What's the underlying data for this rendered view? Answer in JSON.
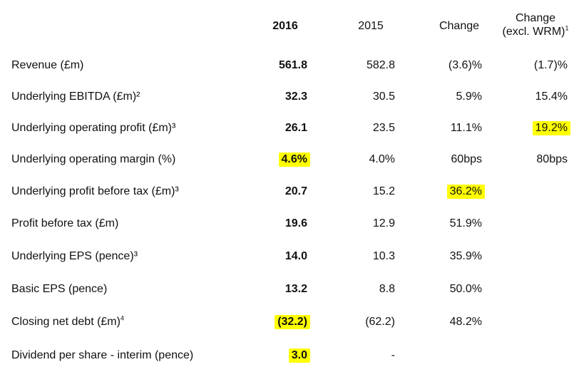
{
  "header": {
    "col_2016": "2016",
    "col_2015": "2015",
    "col_change": "Change",
    "col_change_excl_line1": "Change",
    "col_change_excl_line2": "(excl. WRM)",
    "col_change_excl_sup": "1"
  },
  "highlight_color": "#ffff00",
  "rows": [
    {
      "label": "Revenue (£m)",
      "sup": "",
      "v2016": "561.8",
      "v2015": "582.8",
      "change": "(3.6)%",
      "change_excl": "(1.7)%"
    },
    {
      "label": "Underlying EBITDA (£m)²",
      "sup": "",
      "v2016": "32.3",
      "v2015": "30.5",
      "change": "5.9%",
      "change_excl": "15.4%"
    },
    {
      "label": "Underlying operating profit (£m)³",
      "sup": "",
      "v2016": "26.1",
      "v2015": "23.5",
      "change": "11.1%",
      "change_excl": "19.2%"
    },
    {
      "label": "Underlying operating margin (%)",
      "sup": "",
      "v2016": "4.6%",
      "v2015": "4.0%",
      "change": "60bps",
      "change_excl": "80bps"
    },
    {
      "label": "Underlying profit before tax (£m)³",
      "sup": "",
      "v2016": "20.7",
      "v2015": "15.2",
      "change": "36.2%",
      "change_excl": ""
    },
    {
      "label": "Profit before tax (£m)",
      "sup": "",
      "v2016": "19.6",
      "v2015": "12.9",
      "change": "51.9%",
      "change_excl": ""
    },
    {
      "label": "Underlying EPS (pence)³",
      "sup": "",
      "v2016": "14.0",
      "v2015": "10.3",
      "change": "35.9%",
      "change_excl": ""
    },
    {
      "label": "Basic EPS (pence)",
      "sup": "",
      "v2016": "13.2",
      "v2015": "8.8",
      "change": "50.0%",
      "change_excl": ""
    },
    {
      "label": "Closing net debt (£m)",
      "sup": "4",
      "v2016": "(32.2)",
      "v2015": "(62.2)",
      "change": "48.2%",
      "change_excl": ""
    },
    {
      "label": "Dividend per share - interim (pence)",
      "sup": "",
      "v2016": "3.0",
      "v2015": "-",
      "change": "",
      "change_excl": ""
    }
  ]
}
